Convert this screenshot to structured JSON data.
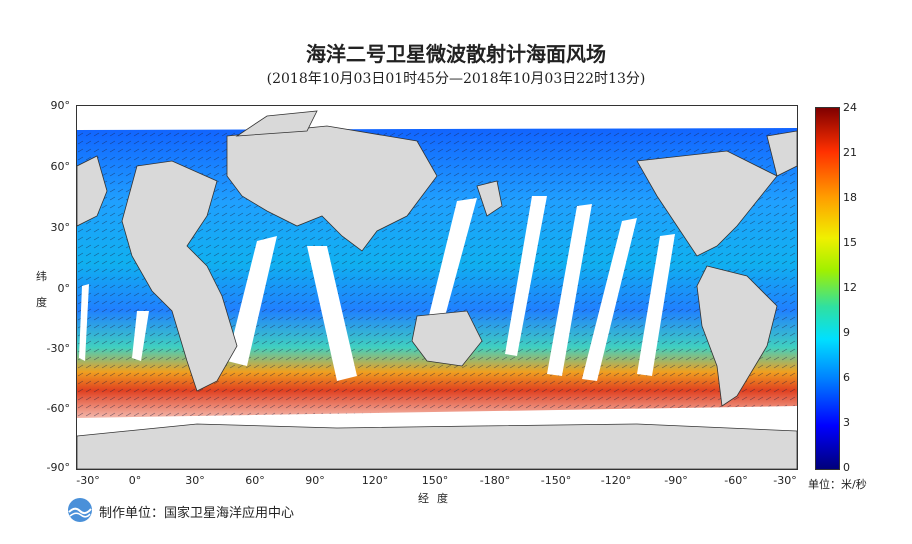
{
  "title": "海洋二号卫星微波散射计海面风场",
  "subtitle": "(2018年10月03日01时45分—2018年10月03日22时13分)",
  "y_axis": {
    "ticks": [
      "90°",
      "60°",
      "30°",
      "0°",
      "-30°",
      "-60°",
      "-90°"
    ],
    "title_chars": [
      "纬",
      "度"
    ]
  },
  "x_axis": {
    "ticks": [
      "-30°",
      "0°",
      "30°",
      "60°",
      "90°",
      "120°",
      "150°",
      "-180°",
      "-150°",
      "-120°",
      "-90°",
      "-60°",
      "-30°"
    ],
    "title": "经度"
  },
  "colorbar": {
    "ticks": [
      "24",
      "21",
      "18",
      "15",
      "12",
      "9",
      "6",
      "3",
      "0"
    ],
    "unit": "单位：米/秒",
    "range": [
      0,
      24
    ]
  },
  "producer": "制作单位：国家卫星海洋应用中心",
  "colors": {
    "land": "#d9d9d9",
    "swath_gap": "#ffffff"
  }
}
